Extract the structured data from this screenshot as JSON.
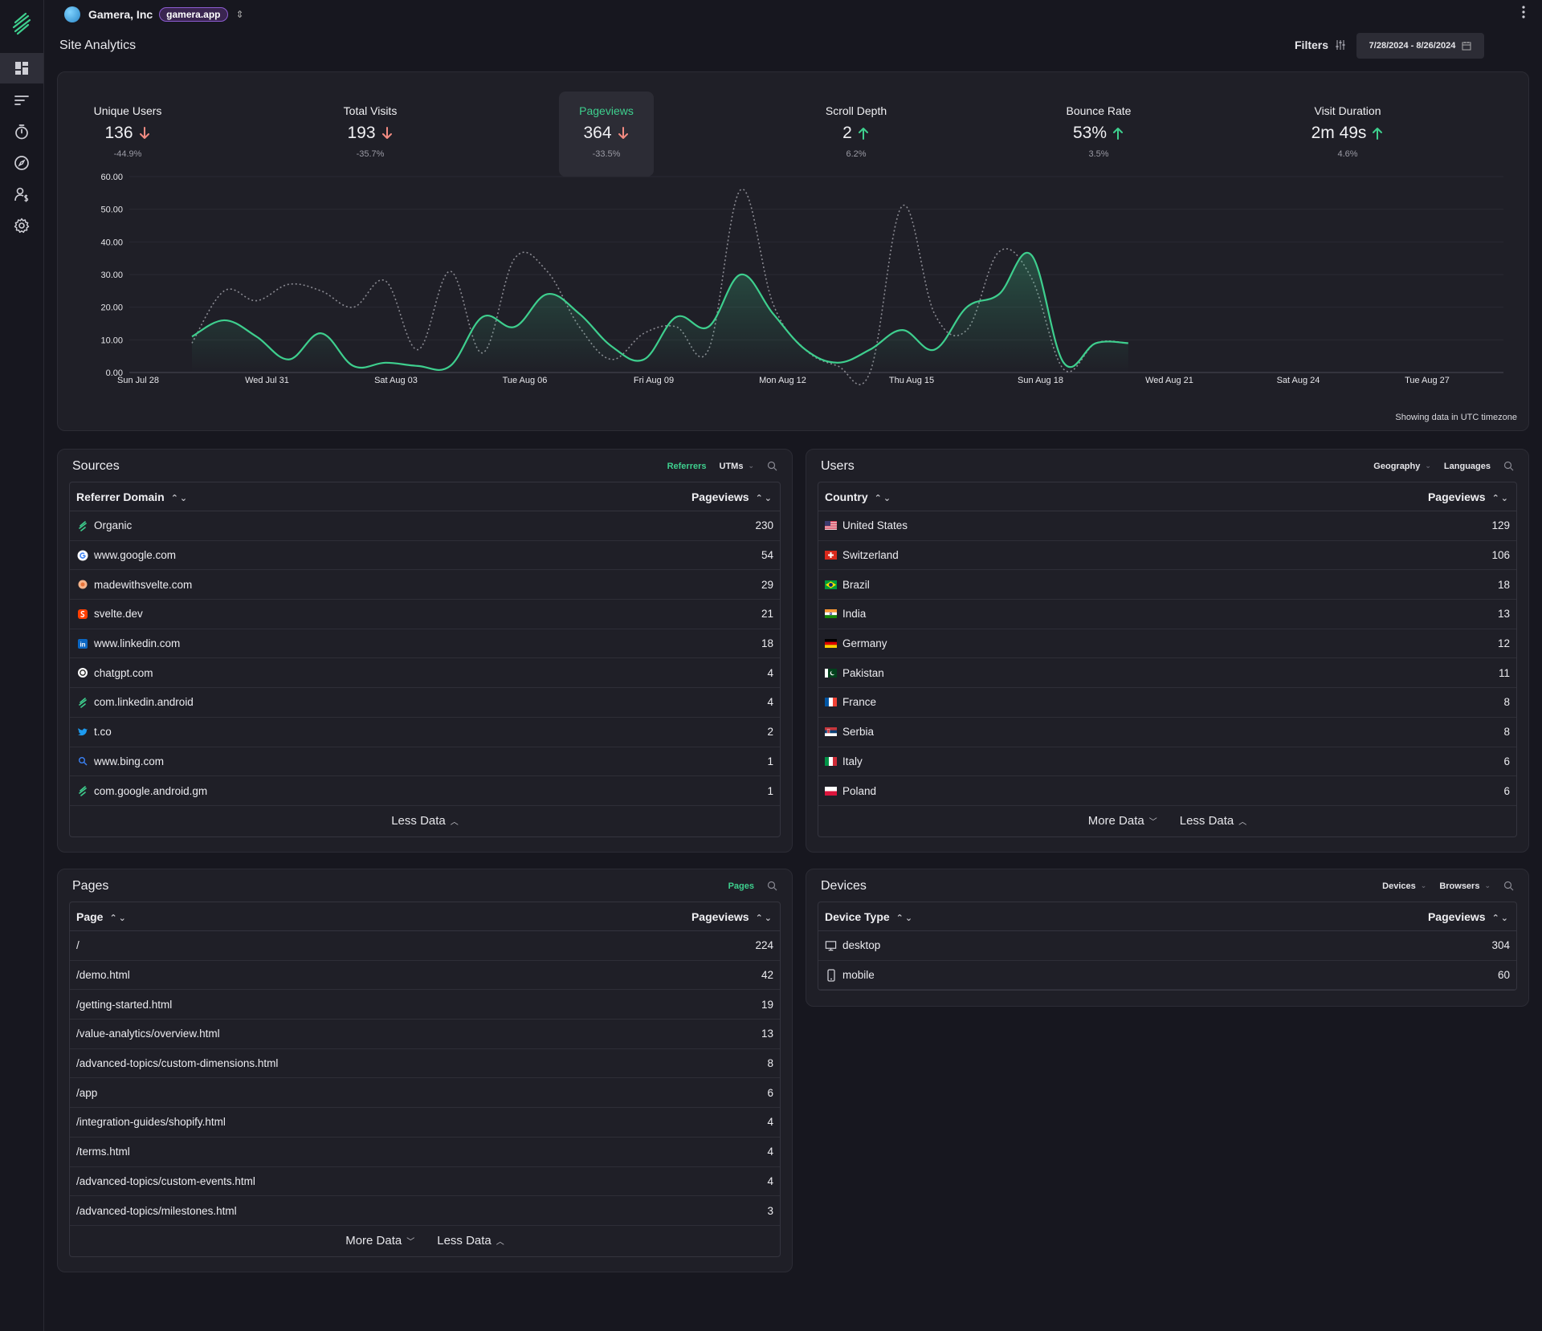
{
  "org": {
    "name": "Gamera, Inc",
    "badge": "gamera.app"
  },
  "page_title": "Site Analytics",
  "filters_label": "Filters",
  "date_range": "7/28/2024 - 8/26/2024",
  "stats": [
    {
      "label": "Unique Users",
      "value": "136",
      "delta": "-44.9%",
      "trend": "down"
    },
    {
      "label": "Total Visits",
      "value": "193",
      "delta": "-35.7%",
      "trend": "down"
    },
    {
      "label": "Pageviews",
      "value": "364",
      "delta": "-33.5%",
      "trend": "down"
    },
    {
      "label": "Scroll Depth",
      "value": "2",
      "delta": "6.2%",
      "trend": "up"
    },
    {
      "label": "Bounce Rate",
      "value": "53%",
      "delta": "3.5%",
      "trend": "up"
    },
    {
      "label": "Visit Duration",
      "value": "2m 49s",
      "delta": "4.6%",
      "trend": "up"
    }
  ],
  "chart_data": {
    "type": "line",
    "x": [
      "Jul 29",
      "Jul 30",
      "Jul 31",
      "Aug 01",
      "Aug 02",
      "Aug 03",
      "Aug 04",
      "Aug 05",
      "Aug 06",
      "Aug 07",
      "Aug 08",
      "Aug 09",
      "Aug 10",
      "Aug 11",
      "Aug 12",
      "Aug 13",
      "Aug 14",
      "Aug 15",
      "Aug 16",
      "Aug 17",
      "Aug 18",
      "Aug 19",
      "Aug 20",
      "Aug 21",
      "Aug 22",
      "Aug 23",
      "Aug 24",
      "Aug 25",
      "Aug 26",
      "Aug 27"
    ],
    "x_ticks": [
      "Sun Jul 28",
      "Wed Jul 31",
      "Sat Aug 03",
      "Tue Aug 06",
      "Fri Aug 09",
      "Mon Aug 12",
      "Thu Aug 15",
      "Sun Aug 18",
      "Wed Aug 21",
      "Sat Aug 24",
      "Tue Aug 27"
    ],
    "y_ticks": [
      "0.00",
      "10.00",
      "20.00",
      "30.00",
      "40.00",
      "50.00",
      "60.00"
    ],
    "ylim": [
      0,
      60
    ],
    "series": [
      {
        "style": "solid",
        "color": "#3ecf8e",
        "values": [
          11,
          16,
          11,
          4,
          12,
          2,
          3,
          2,
          2,
          17,
          14,
          24,
          18,
          8,
          4,
          17,
          14,
          30,
          18,
          7,
          3,
          7,
          13,
          7,
          20,
          24,
          36,
          3,
          9,
          9
        ]
      },
      {
        "style": "dotted",
        "color": "#8a8a92",
        "values": [
          9,
          25,
          22,
          27,
          25,
          20,
          28,
          7,
          31,
          6,
          35,
          31,
          14,
          4,
          12,
          14,
          7,
          56,
          21,
          7,
          2,
          0,
          51,
          18,
          13,
          37,
          29,
          1,
          9,
          9
        ]
      }
    ],
    "grid": true,
    "legend": "none"
  },
  "utc_note": "Showing data in UTC timezone",
  "sources": {
    "title": "Sources",
    "tabs": [
      "Referrers",
      "UTMs"
    ],
    "col1": "Referrer Domain",
    "col2": "Pageviews",
    "rows": [
      {
        "icon": "leaf-icon",
        "name": "Organic",
        "value": "230"
      },
      {
        "icon": "google-icon",
        "name": "www.google.com",
        "value": "54"
      },
      {
        "icon": "madewithsvelte-icon",
        "name": "madewithsvelte.com",
        "value": "29"
      },
      {
        "icon": "svelte-icon",
        "name": "svelte.dev",
        "value": "21"
      },
      {
        "icon": "linkedin-icon",
        "name": "www.linkedin.com",
        "value": "18"
      },
      {
        "icon": "chatgpt-icon",
        "name": "chatgpt.com",
        "value": "4"
      },
      {
        "icon": "leaf-icon",
        "name": "com.linkedin.android",
        "value": "4"
      },
      {
        "icon": "twitter-icon",
        "name": "t.co",
        "value": "2"
      },
      {
        "icon": "bing-icon",
        "name": "www.bing.com",
        "value": "1"
      },
      {
        "icon": "leaf-icon",
        "name": "com.google.android.gm",
        "value": "1"
      }
    ],
    "less": "Less Data"
  },
  "users": {
    "title": "Users",
    "tabs": [
      "Geography",
      "Languages"
    ],
    "col1": "Country",
    "col2": "Pageviews",
    "rows": [
      {
        "flag": "us",
        "name": "United States",
        "value": "129"
      },
      {
        "flag": "ch",
        "name": "Switzerland",
        "value": "106"
      },
      {
        "flag": "br",
        "name": "Brazil",
        "value": "18"
      },
      {
        "flag": "in",
        "name": "India",
        "value": "13"
      },
      {
        "flag": "de",
        "name": "Germany",
        "value": "12"
      },
      {
        "flag": "pk",
        "name": "Pakistan",
        "value": "11"
      },
      {
        "flag": "fr",
        "name": "France",
        "value": "8"
      },
      {
        "flag": "rs",
        "name": "Serbia",
        "value": "8"
      },
      {
        "flag": "it",
        "name": "Italy",
        "value": "6"
      },
      {
        "flag": "pl",
        "name": "Poland",
        "value": "6"
      }
    ],
    "more": "More Data",
    "less": "Less Data"
  },
  "pages": {
    "title": "Pages",
    "tabs": [
      "Pages"
    ],
    "col1": "Page",
    "col2": "Pageviews",
    "rows": [
      {
        "name": "/",
        "value": "224"
      },
      {
        "name": "/demo.html",
        "value": "42"
      },
      {
        "name": "/getting-started.html",
        "value": "19"
      },
      {
        "name": "/value-analytics/overview.html",
        "value": "13"
      },
      {
        "name": "/advanced-topics/custom-dimensions.html",
        "value": "8"
      },
      {
        "name": "/app",
        "value": "6"
      },
      {
        "name": "/integration-guides/shopify.html",
        "value": "4"
      },
      {
        "name": "/terms.html",
        "value": "4"
      },
      {
        "name": "/advanced-topics/custom-events.html",
        "value": "4"
      },
      {
        "name": "/advanced-topics/milestones.html",
        "value": "3"
      }
    ],
    "more": "More Data",
    "less": "Less Data"
  },
  "devices": {
    "title": "Devices",
    "tabs": [
      "Devices",
      "Browsers"
    ],
    "col1": "Device Type",
    "col2": "Pageviews",
    "rows": [
      {
        "icon": "desktop-icon",
        "name": "desktop",
        "value": "304"
      },
      {
        "icon": "mobile-icon",
        "name": "mobile",
        "value": "60"
      }
    ]
  },
  "colors": {
    "accent": "#3ecf8e",
    "down": "#f28b82",
    "up": "#3ecf8e",
    "background": "#17171f",
    "panel": "#1f1f27"
  }
}
